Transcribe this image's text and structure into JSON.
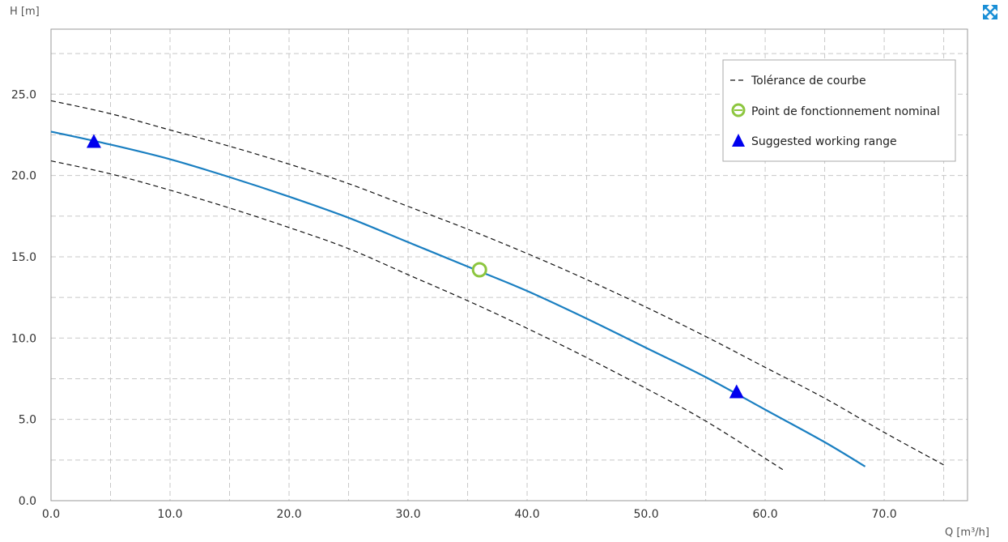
{
  "colors": {
    "pump_curve": "#1a7fc1",
    "tolerance": "#111111",
    "nominal_point": "#8dc63f",
    "working_range": "#0000ee",
    "grid": "#c8c8c8",
    "expand_icon": "#1a8fd6"
  },
  "toolbar": {
    "expand_icon": "expand-arrows-icon"
  },
  "chart_data": {
    "type": "line",
    "xlabel": "Q [m³/h]",
    "ylabel": "H [m]",
    "xlim": [
      0,
      77
    ],
    "ylim": [
      0,
      29
    ],
    "x_ticks": [
      "0.0",
      "10.0",
      "20.0",
      "30.0",
      "40.0",
      "50.0",
      "60.0",
      "70.0"
    ],
    "y_ticks": [
      "0.0",
      "5.0",
      "10.0",
      "15.0",
      "20.0",
      "25.0"
    ],
    "grid": true,
    "legend_position": "top-right",
    "legend": [
      {
        "label": "Tolérance de courbe",
        "symbol": "dashed-line"
      },
      {
        "label": "Point de fonctionnement nominal",
        "symbol": "circle-minus"
      },
      {
        "label": "Suggested working range",
        "symbol": "triangle"
      }
    ],
    "series": [
      {
        "name": "Tolérance de courbe",
        "style": "dashed",
        "x": [
          0,
          5,
          10,
          15,
          20,
          25,
          30,
          35,
          40,
          45,
          50,
          55,
          60,
          65,
          70,
          75
        ],
        "y": [
          24.6,
          23.8,
          22.8,
          21.8,
          20.7,
          19.5,
          18.1,
          16.7,
          15.2,
          13.6,
          11.9,
          10.1,
          8.2,
          6.3,
          4.2,
          2.2
        ]
      },
      {
        "name": "Tolérance de courbe",
        "style": "dashed",
        "x": [
          0,
          5,
          10,
          15,
          20,
          25,
          30,
          35,
          40,
          45,
          50,
          55,
          61.5
        ],
        "y": [
          20.9,
          20.1,
          19.1,
          18.0,
          16.8,
          15.5,
          13.9,
          12.3,
          10.6,
          8.8,
          6.9,
          4.9,
          1.9
        ]
      },
      {
        "name": "",
        "style": "solid",
        "x": [
          0,
          5,
          10,
          15,
          20,
          25,
          30,
          35,
          40,
          45,
          50,
          55,
          60,
          65,
          68.4
        ],
        "y": [
          22.7,
          21.9,
          21.0,
          19.9,
          18.7,
          17.4,
          15.9,
          14.4,
          12.9,
          11.2,
          9.4,
          7.6,
          5.6,
          3.6,
          2.1
        ]
      }
    ],
    "points": [
      {
        "name": "Point de fonctionnement nominal",
        "marker": "circle",
        "x": 36.0,
        "y": 14.2
      },
      {
        "name": "Suggested working range",
        "marker": "triangle",
        "x": 3.6,
        "y": 22.1
      },
      {
        "name": "Suggested working range",
        "marker": "triangle",
        "x": 57.6,
        "y": 6.7
      }
    ]
  }
}
